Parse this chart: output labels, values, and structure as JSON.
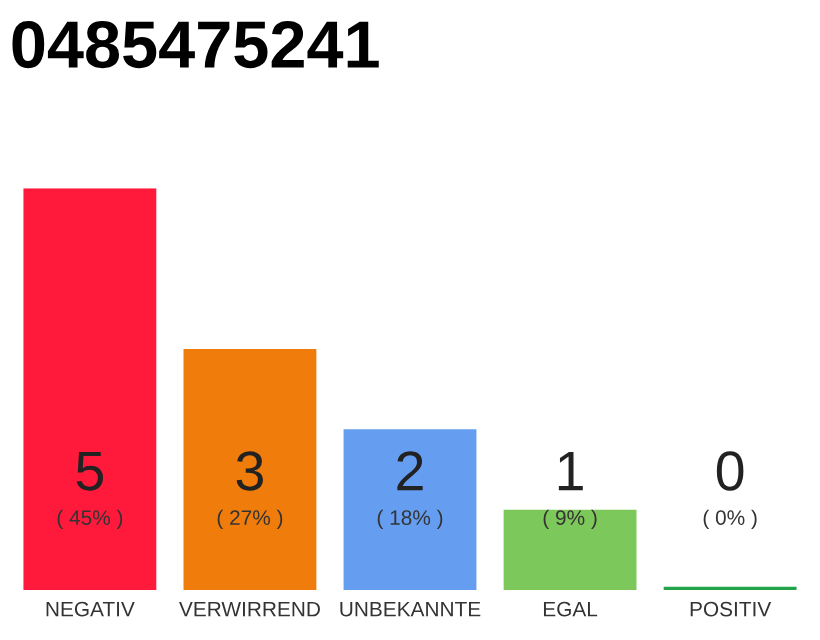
{
  "chart_data": {
    "type": "bar",
    "title": "0485475241",
    "categories": [
      "NEGATIV",
      "VERWIRREND",
      "UNBEKANNTE",
      "EGAL",
      "POSITIV"
    ],
    "values": [
      5,
      3,
      2,
      1,
      0
    ],
    "colors": [
      "#ff1a3c",
      "#f07c0c",
      "#659df0",
      "#7dc85a",
      "#22a34a"
    ],
    "value_labels": [
      "5\n( 45% )",
      "3\n( 27% )",
      "2\n( 18% )",
      "1\n( 9% )",
      "0\n( 0% )"
    ],
    "grid": false,
    "legend": false
  }
}
